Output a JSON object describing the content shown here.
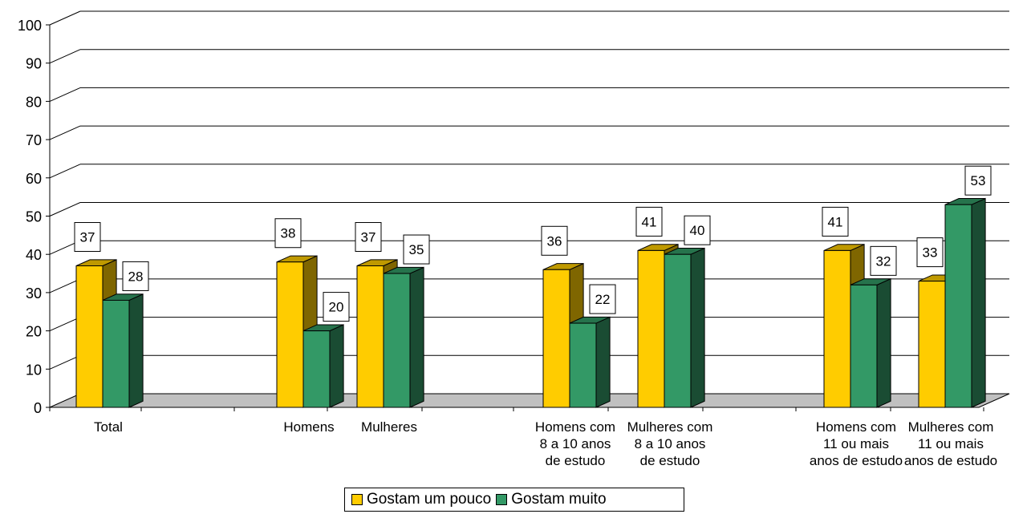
{
  "chart_data": {
    "type": "bar",
    "categories": [
      [
        "Total"
      ],
      [
        "Homens"
      ],
      [
        "Mulheres"
      ],
      [
        "Homens com",
        "8 a 10 anos",
        "de estudo"
      ],
      [
        "Mulheres com",
        "8 a 10 anos",
        "de estudo"
      ],
      [
        "Homens com",
        "11 ou mais",
        "anos de estudo"
      ],
      [
        "Mulheres com",
        "11 ou mais",
        "anos de estudo"
      ]
    ],
    "series": [
      {
        "name": "Gostam um pouco",
        "values": [
          37,
          38,
          37,
          36,
          41,
          41,
          33
        ],
        "color": "#FFCC00",
        "side_color": "#7F6600",
        "top_color": "#BF9900"
      },
      {
        "name": "Gostam muito",
        "values": [
          28,
          20,
          35,
          22,
          40,
          32,
          53
        ],
        "color": "#339966",
        "side_color": "#1A4C33",
        "top_color": "#26734C"
      }
    ],
    "yticks": [
      "0",
      "10",
      "20",
      "30",
      "40",
      "50",
      "60",
      "70",
      "80",
      "90",
      "100"
    ],
    "ylim": [
      0,
      100
    ],
    "grid": true,
    "floor_color": "#C0C0C0",
    "legend_position": "bottom",
    "title": "",
    "xlabel": "",
    "ylabel": ""
  }
}
